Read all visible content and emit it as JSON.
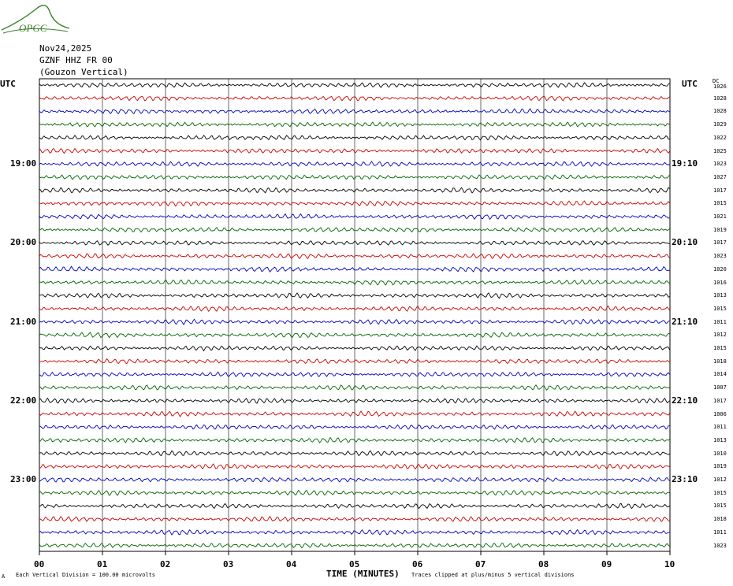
{
  "logo": {
    "text": "OPGC"
  },
  "header": {
    "date": "Nov24,2025",
    "station": "GZNF HHZ FR 00",
    "name": "(Gouzon Vertical)"
  },
  "utc_left": "UTC",
  "utc_right": "UTC",
  "dc_header": "DC",
  "left_time_labels": [
    "19:00",
    "20:00",
    "21:00",
    "22:00",
    "23:00"
  ],
  "right_time_labels": [
    "19:10",
    "20:10",
    "21:10",
    "22:10",
    "23:10"
  ],
  "x_ticks": [
    "00",
    "01",
    "02",
    "03",
    "04",
    "05",
    "06",
    "07",
    "08",
    "09",
    "10"
  ],
  "xlabel": "TIME (MINUTES)",
  "footer_left": "Each Vertical Division =  100.00 microvolts",
  "footer_right": "Traces clipped at plus/minus 5 vertical divisions",
  "footer_mark": "A",
  "colors": {
    "black": "#000000",
    "red": "#cc0000",
    "blue": "#0000bb",
    "green": "#006400",
    "logo": "#3a7f2a"
  },
  "chart_data": {
    "type": "line",
    "xlabel": "TIME (MINUTES)",
    "xlim": [
      0,
      10
    ],
    "trace_color_cycle": [
      "black",
      "red",
      "blue",
      "green"
    ],
    "trace_dc_offsets": [
      1026,
      1028,
      1028,
      1029,
      1022,
      1025,
      1023,
      1027,
      1017,
      1015,
      1021,
      1019,
      1017,
      1023,
      1020,
      1016,
      1013,
      1015,
      1011,
      1012,
      1015,
      1018,
      1014,
      1007,
      1017,
      1006,
      1011,
      1013,
      1010,
      1019,
      1012,
      1015,
      1015,
      1018,
      1011,
      1023
    ]
  }
}
